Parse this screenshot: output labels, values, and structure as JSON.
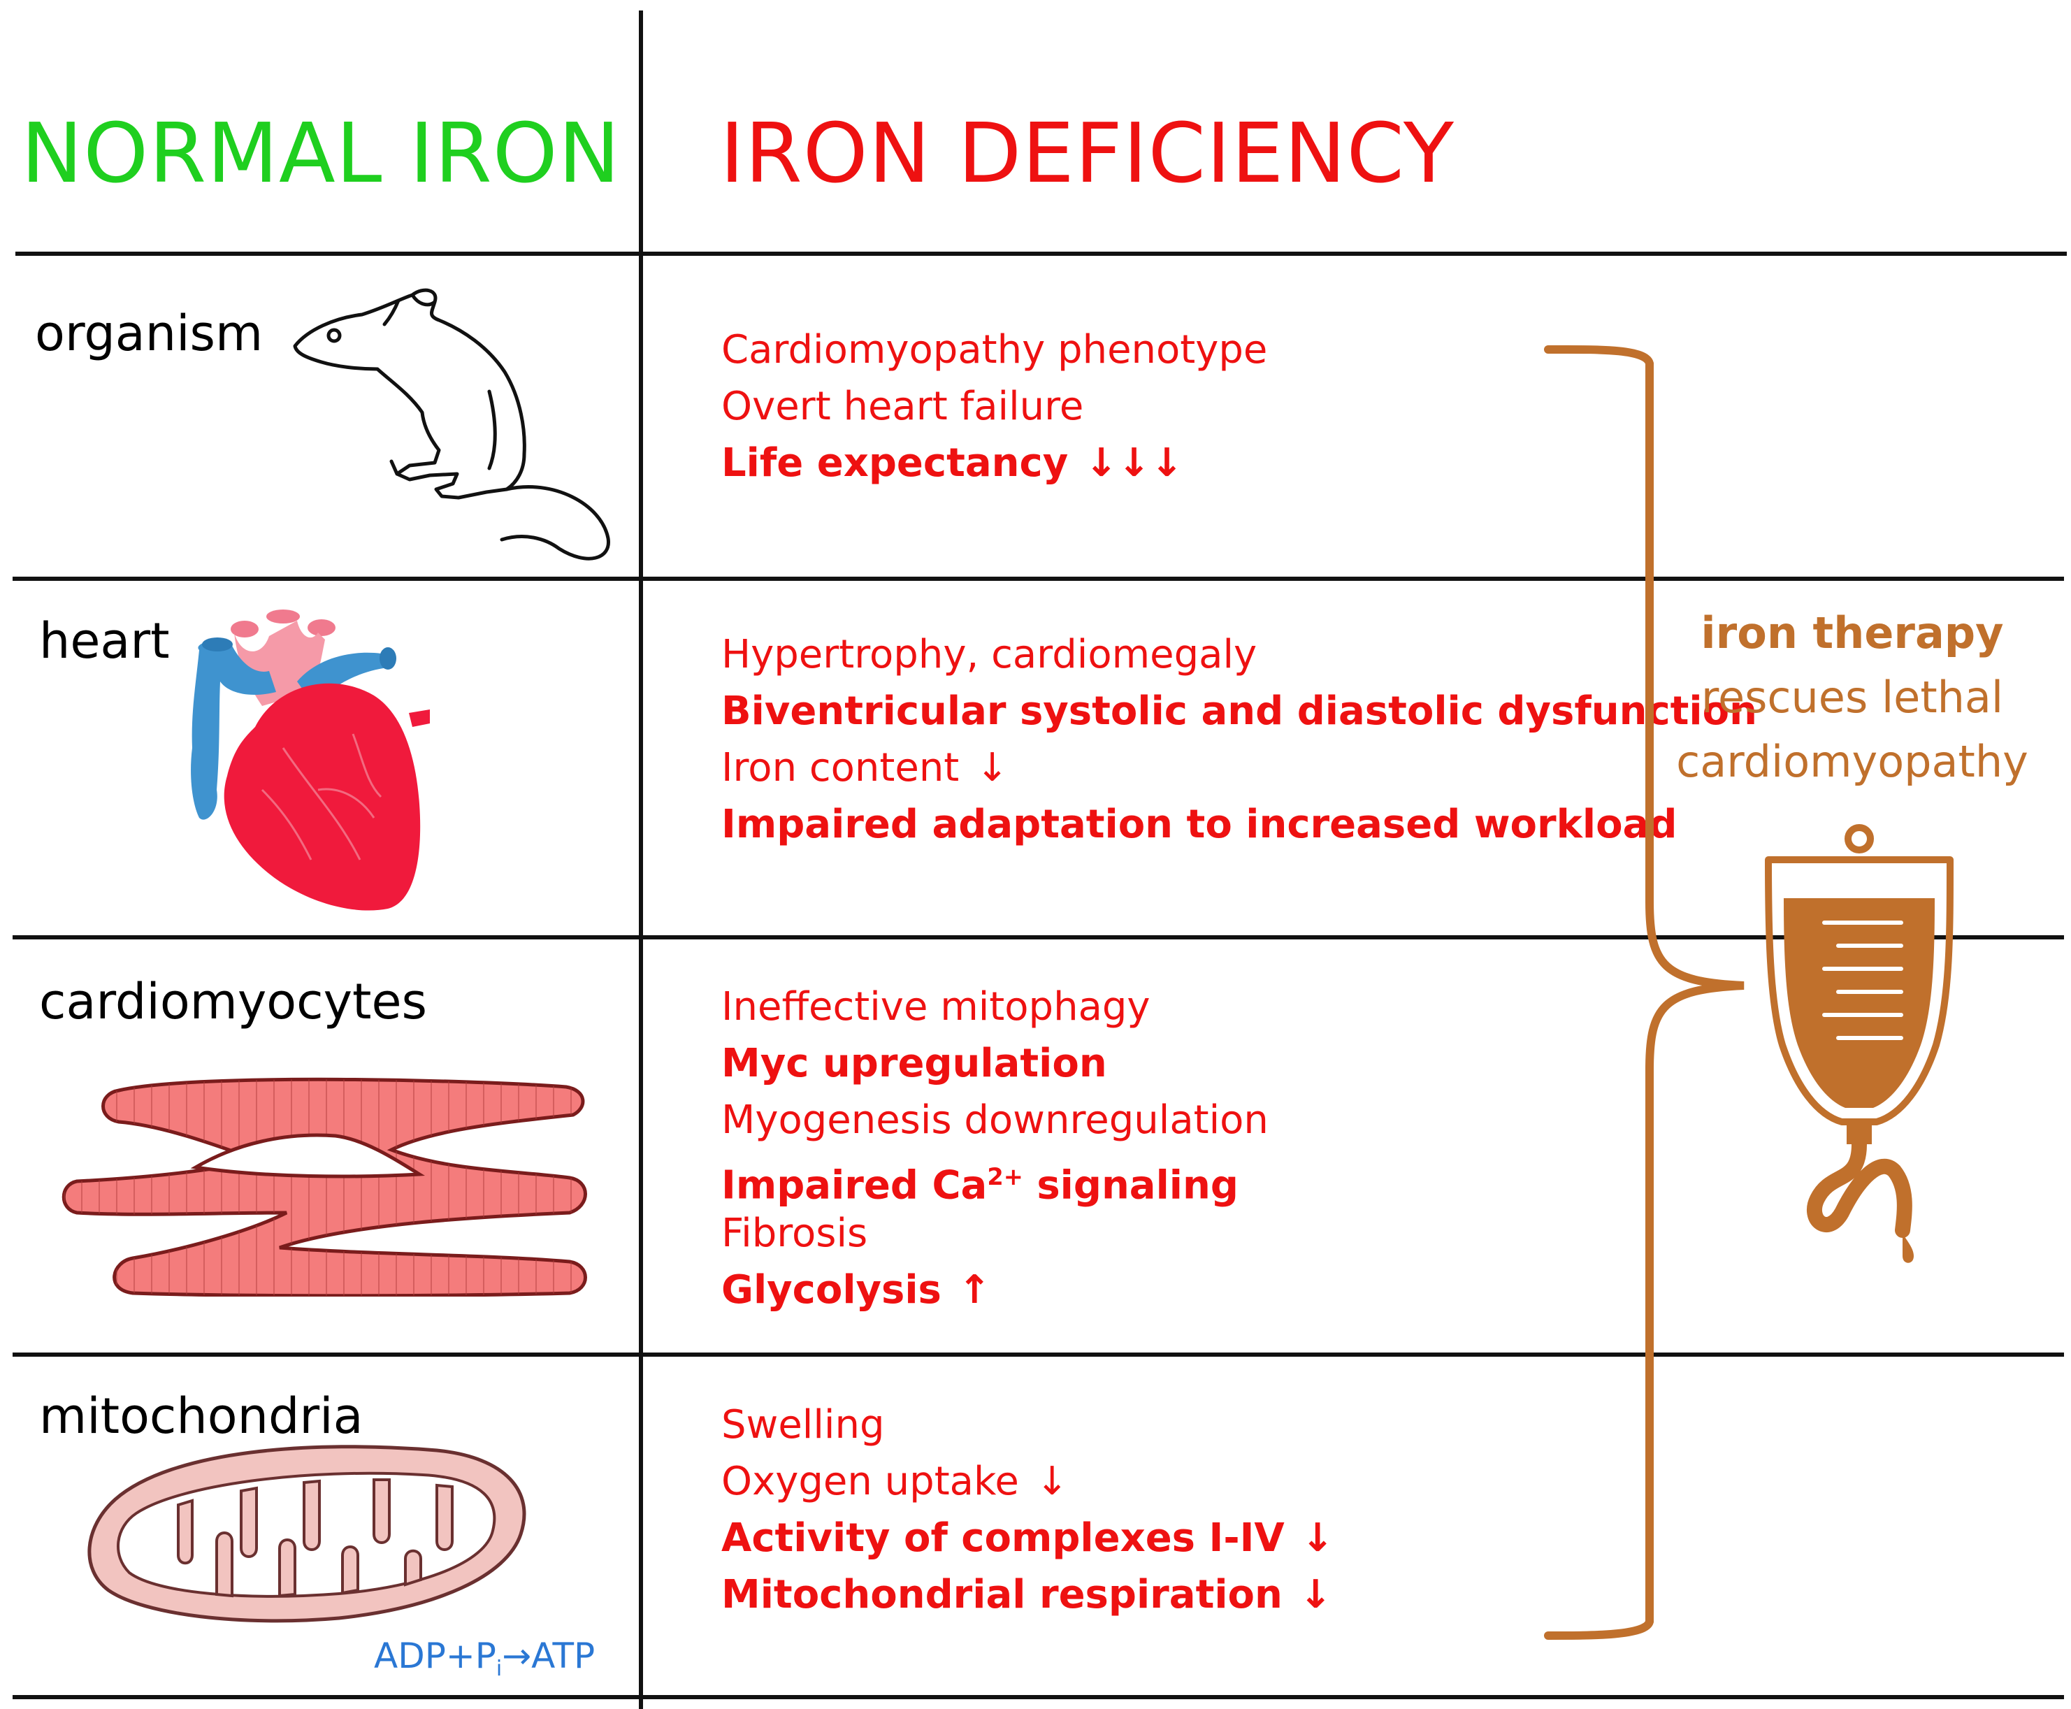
{
  "headers": {
    "normal": "NORMAL IRON",
    "deficiency": "IRON DEFICIENCY"
  },
  "rows": [
    {
      "label": "organism",
      "image": "mouse-illustration",
      "effects": [
        {
          "text": "Cardiomyopathy phenotype",
          "bold": false,
          "arrow": ""
        },
        {
          "text": "Overt heart failure",
          "bold": false,
          "arrow": ""
        },
        {
          "text": "Life expectancy",
          "bold": true,
          "arrow": "↓↓↓"
        }
      ]
    },
    {
      "label": "heart",
      "image": "heart-illustration",
      "effects": [
        {
          "text": "Hypertrophy, cardiomegaly",
          "bold": false,
          "arrow": ""
        },
        {
          "text": "Biventricular systolic and diastolic dysfunction",
          "bold": true,
          "arrow": ""
        },
        {
          "text": "Iron content",
          "bold": false,
          "arrow": "↓"
        },
        {
          "text": "Impaired adaptation to increased workload",
          "bold": true,
          "arrow": ""
        }
      ]
    },
    {
      "label": "cardiomyocytes",
      "image": "cardiomyocyte-illustration",
      "effects": [
        {
          "text": "Ineffective mitophagy",
          "bold": false,
          "arrow": ""
        },
        {
          "text": "Myc upregulation",
          "bold": true,
          "arrow": ""
        },
        {
          "text": "Myogenesis downregulation",
          "bold": false,
          "arrow": ""
        },
        {
          "text": "Impaired Ca",
          "sup": "2+",
          "tail": " signaling",
          "bold": true,
          "arrow": ""
        },
        {
          "text": "Fibrosis",
          "bold": false,
          "arrow": ""
        },
        {
          "text": "Glycolysis",
          "bold": true,
          "arrow": "↑"
        }
      ]
    },
    {
      "label": "mitochondria",
      "image": "mitochondrion-illustration",
      "effects": [
        {
          "text": "Swelling",
          "bold": false,
          "arrow": ""
        },
        {
          "text": "Oxygen uptake",
          "bold": false,
          "arrow": "↓"
        },
        {
          "text": "Activity of complexes I-IV",
          "bold": true,
          "arrow": "↓"
        },
        {
          "text": "Mitochondrial respiration",
          "bold": true,
          "arrow": "↓"
        }
      ]
    }
  ],
  "atp_reaction": {
    "left": "ADP+P",
    "subscript": "i",
    "arrow": "→",
    "right": "ATP"
  },
  "therapy": {
    "line1": "iron therapy",
    "line2": "rescues lethal",
    "line3": "cardiomyopathy",
    "icon": "iv-bag-icon"
  },
  "colors": {
    "normal": "#1fcf1f",
    "deficiency": "#ee1111",
    "therapy": "#c0702c",
    "atp": "#2a77d4",
    "cardiomyocyte": "#f47c7c",
    "mitochondrion": "#f2c4c0"
  }
}
